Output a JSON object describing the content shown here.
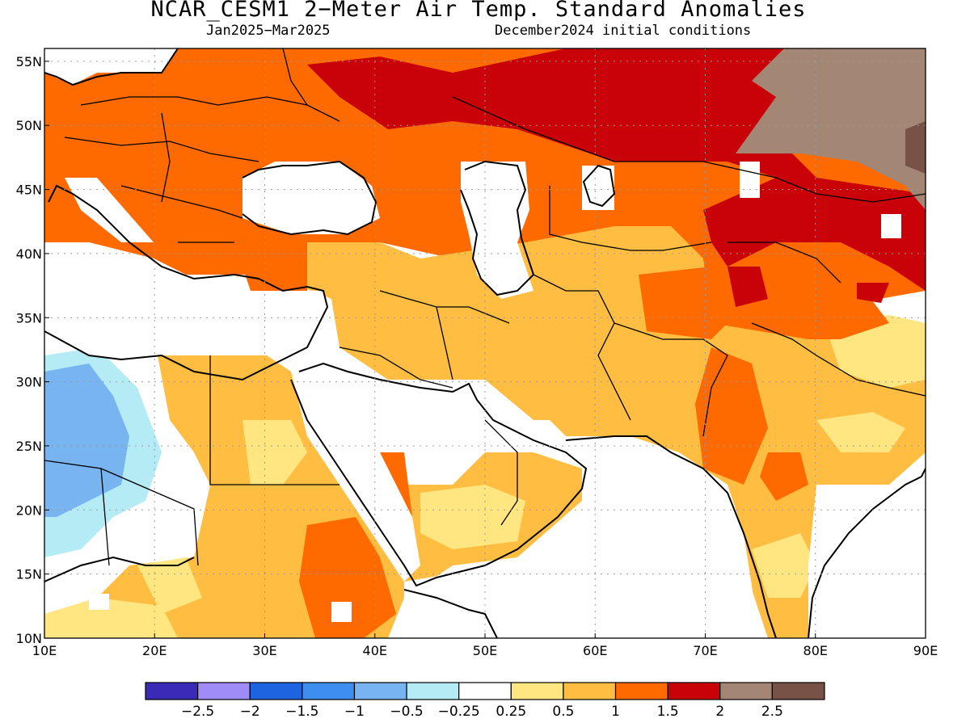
{
  "title": "NCAR_CESM1 2−Meter Air Temp. Standard Anomalies",
  "subtitle_left": "Jan2025−Mar2025",
  "subtitle_right": "December2024 initial conditions",
  "map": {
    "lon_range": [
      10,
      90
    ],
    "lat_range": [
      10,
      56
    ],
    "lon_ticks": [
      {
        "value": 10,
        "label": "10E"
      },
      {
        "value": 20,
        "label": "20E"
      },
      {
        "value": 30,
        "label": "30E"
      },
      {
        "value": 40,
        "label": "40E"
      },
      {
        "value": 50,
        "label": "50E"
      },
      {
        "value": 60,
        "label": "60E"
      },
      {
        "value": 70,
        "label": "70E"
      },
      {
        "value": 80,
        "label": "80E"
      },
      {
        "value": 90,
        "label": "90E"
      }
    ],
    "lat_ticks": [
      {
        "value": 10,
        "label": "10N"
      },
      {
        "value": 15,
        "label": "15N"
      },
      {
        "value": 20,
        "label": "20N"
      },
      {
        "value": 25,
        "label": "25N"
      },
      {
        "value": 30,
        "label": "30N"
      },
      {
        "value": 35,
        "label": "35N"
      },
      {
        "value": 40,
        "label": "40N"
      },
      {
        "value": 45,
        "label": "45N"
      },
      {
        "value": 50,
        "label": "50N"
      },
      {
        "value": 55,
        "label": "55N"
      }
    ]
  },
  "colorbar": {
    "colors": [
      "#3a2ab5",
      "#9f8cf5",
      "#1e63e0",
      "#3d8ef0",
      "#78b4f0",
      "#b4ebf5",
      "#ffffff",
      "#ffe680",
      "#ffbd41",
      "#ff6a00",
      "#c80208",
      "#a48675",
      "#785247"
    ],
    "labels": [
      "−2.5",
      "−2",
      "−1.5",
      "−1",
      "−0.5",
      "−0.25",
      "0.25",
      "0.5",
      "1",
      "1.5",
      "2",
      "2.5"
    ]
  },
  "legend_colors": {
    "c1": "#ffe680",
    "c2": "#ffbd41",
    "c3": "#ff6a00",
    "c4": "#c80208",
    "c5": "#a48675",
    "c6": "#785247",
    "b1": "#b4ebf5",
    "b2": "#78b4f0"
  }
}
